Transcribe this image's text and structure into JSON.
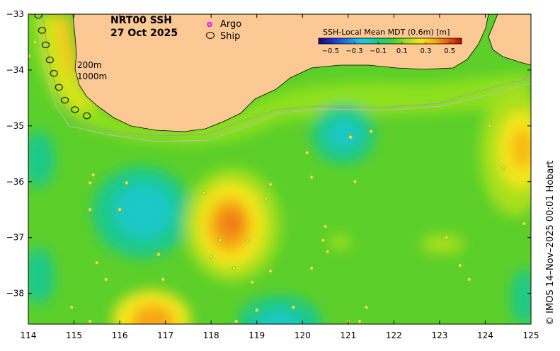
{
  "title": {
    "product": "NRT00 SSH",
    "date": "27 Oct 2025"
  },
  "legend": {
    "argo_marker": "o",
    "argo_label": "Argo",
    "ship_label": "Ship",
    "argo_color": "#ff00ff"
  },
  "colorbar": {
    "title": "SSH-Local Mean MDT (0.6m) [m]",
    "tick_labels": [
      "−0.5",
      "−0.3",
      "−0.1",
      "0.1",
      "0.3",
      "0.5"
    ],
    "tick_values": [
      -0.5,
      -0.3,
      -0.1,
      0.1,
      0.3,
      0.5
    ],
    "range": [
      -0.6,
      0.6
    ]
  },
  "contour_labels": {
    "isobath_200": "200m",
    "isobath_1000": "1000m"
  },
  "axes": {
    "lon_ticks": [
      "114",
      "115",
      "116",
      "117",
      "118",
      "119",
      "120",
      "121",
      "122",
      "123",
      "124",
      "125"
    ],
    "lon_values": [
      114,
      115,
      116,
      117,
      118,
      119,
      120,
      121,
      122,
      123,
      124,
      125
    ],
    "lat_ticks": [
      "−33",
      "−34",
      "−35",
      "−36",
      "−37",
      "−38"
    ],
    "lat_values": [
      -33,
      -34,
      -35,
      -36,
      -37,
      -38
    ],
    "lon_range": [
      114,
      125
    ],
    "lat_range": [
      -38.55,
      -33
    ]
  },
  "credit": "© IMOS 14–Nov–2025 00:01 Hobart",
  "colors": {
    "land": "#fcc995",
    "background_field": "#5ccf2a",
    "ship_ring": "#000000"
  },
  "ship_positions": [
    {
      "lon": 114.22,
      "lat": -33.02
    },
    {
      "lon": 114.3,
      "lat": -33.29
    },
    {
      "lon": 114.38,
      "lat": -33.55
    },
    {
      "lon": 114.47,
      "lat": -33.82
    },
    {
      "lon": 114.56,
      "lat": -34.06
    },
    {
      "lon": 114.67,
      "lat": -34.31
    },
    {
      "lon": 114.8,
      "lat": -34.54
    },
    {
      "lon": 115.02,
      "lat": -34.71
    },
    {
      "lon": 115.28,
      "lat": -34.82
    }
  ],
  "float_positions": [
    {
      "lon": 114.02,
      "lat": -33.75
    },
    {
      "lon": 114.15,
      "lat": -33.5
    },
    {
      "lon": 115.42,
      "lat": -35.88
    },
    {
      "lon": 115.35,
      "lat": -36.02
    },
    {
      "lon": 115.35,
      "lat": -36.5
    },
    {
      "lon": 116.15,
      "lat": -36.02
    },
    {
      "lon": 116.0,
      "lat": -36.5
    },
    {
      "lon": 115.5,
      "lat": -37.45
    },
    {
      "lon": 115.7,
      "lat": -37.75
    },
    {
      "lon": 116.85,
      "lat": -37.3
    },
    {
      "lon": 116.95,
      "lat": -37.75
    },
    {
      "lon": 114.95,
      "lat": -38.25
    },
    {
      "lon": 115.35,
      "lat": -38.5
    },
    {
      "lon": 117.85,
      "lat": -36.2
    },
    {
      "lon": 118.2,
      "lat": -37.05
    },
    {
      "lon": 118.0,
      "lat": -37.35
    },
    {
      "lon": 118.5,
      "lat": -37.55
    },
    {
      "lon": 118.8,
      "lat": -37.05
    },
    {
      "lon": 119.2,
      "lat": -36.3
    },
    {
      "lon": 119.3,
      "lat": -36.05
    },
    {
      "lon": 119.3,
      "lat": -37.6
    },
    {
      "lon": 118.9,
      "lat": -37.8
    },
    {
      "lon": 119.0,
      "lat": -38.3
    },
    {
      "lon": 118.55,
      "lat": -38.5
    },
    {
      "lon": 120.1,
      "lat": -35.48
    },
    {
      "lon": 120.2,
      "lat": -35.92
    },
    {
      "lon": 120.5,
      "lat": -36.8
    },
    {
      "lon": 120.45,
      "lat": -37.05
    },
    {
      "lon": 120.55,
      "lat": -37.25
    },
    {
      "lon": 120.2,
      "lat": -37.55
    },
    {
      "lon": 119.8,
      "lat": -38.25
    },
    {
      "lon": 121.05,
      "lat": -35.2
    },
    {
      "lon": 121.5,
      "lat": -35.1
    },
    {
      "lon": 121.15,
      "lat": -36.0
    },
    {
      "lon": 121.0,
      "lat": -38.5
    },
    {
      "lon": 121.25,
      "lat": -38.5
    },
    {
      "lon": 121.4,
      "lat": -38.25
    },
    {
      "lon": 123.15,
      "lat": -37.0
    },
    {
      "lon": 123.45,
      "lat": -37.5
    },
    {
      "lon": 123.65,
      "lat": -37.75
    },
    {
      "lon": 124.1,
      "lat": -35.0
    },
    {
      "lon": 124.4,
      "lat": -35.75
    },
    {
      "lon": 124.85,
      "lat": -36.75
    }
  ]
}
